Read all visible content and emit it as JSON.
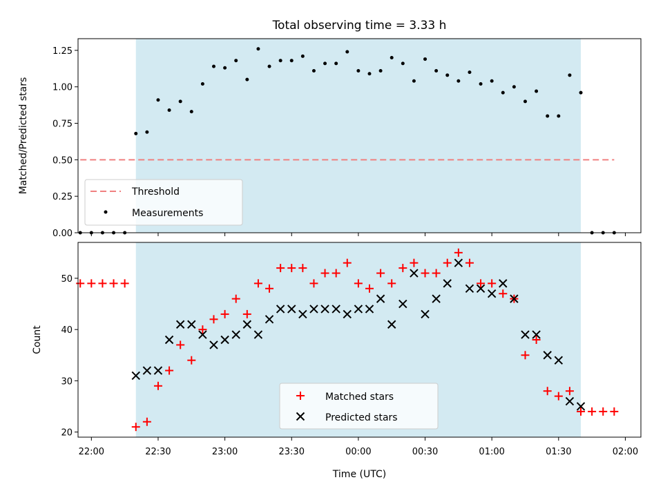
{
  "chart_data": [
    {
      "type": "scatter",
      "title": "Total observing time = 3.33 h",
      "xlabel": "",
      "ylabel": "Matched/Predicted stars",
      "xlim": [
        "21:54",
        "02:07"
      ],
      "ylim": [
        0,
        1.33
      ],
      "yticks": [
        "0.00",
        "0.25",
        "0.50",
        "0.75",
        "1.00",
        "1.25"
      ],
      "shaded_interval": [
        "22:20",
        "01:40"
      ],
      "shaded_color": "#d3eaf2",
      "legend_position": "lower-left",
      "threshold": {
        "name": "Threshold",
        "value": 0.5,
        "x_range": [
          "21:55",
          "01:55"
        ],
        "color": "#f08080"
      },
      "series": [
        {
          "name": "Measurements",
          "color": "#000000",
          "x": [
            "21:55",
            "22:00",
            "22:05",
            "22:10",
            "22:15",
            "22:20",
            "22:25",
            "22:30",
            "22:35",
            "22:40",
            "22:45",
            "22:50",
            "22:55",
            "23:00",
            "23:05",
            "23:10",
            "23:15",
            "23:20",
            "23:25",
            "23:30",
            "23:35",
            "23:40",
            "23:45",
            "23:50",
            "23:55",
            "00:00",
            "00:05",
            "00:10",
            "00:15",
            "00:20",
            "00:25",
            "00:30",
            "00:35",
            "00:40",
            "00:45",
            "00:50",
            "00:55",
            "01:00",
            "01:05",
            "01:10",
            "01:15",
            "01:20",
            "01:25",
            "01:30",
            "01:35",
            "01:40",
            "01:45",
            "01:50",
            "01:55"
          ],
          "y": [
            0,
            0,
            0,
            0,
            0,
            0.68,
            0.69,
            0.91,
            0.84,
            0.9,
            0.83,
            1.02,
            1.14,
            1.13,
            1.18,
            1.05,
            1.26,
            1.14,
            1.18,
            1.18,
            1.21,
            1.11,
            1.16,
            1.16,
            1.24,
            1.11,
            1.09,
            1.11,
            1.2,
            1.16,
            1.04,
            1.19,
            1.11,
            1.08,
            1.04,
            1.1,
            1.02,
            1.04,
            0.96,
            1.0,
            0.9,
            0.97,
            0.8,
            0.8,
            1.08,
            0.96,
            0,
            0,
            0
          ]
        }
      ]
    },
    {
      "type": "scatter",
      "xlabel": "Time (UTC)",
      "ylabel": "Count",
      "xlim": [
        "21:54",
        "02:07"
      ],
      "ylim": [
        19,
        57
      ],
      "xticks": [
        "22:00",
        "22:30",
        "23:00",
        "23:30",
        "00:00",
        "00:30",
        "01:00",
        "01:30",
        "02:00"
      ],
      "yticks": [
        "20",
        "30",
        "40",
        "50"
      ],
      "shaded_interval": [
        "22:20",
        "01:40"
      ],
      "shaded_color": "#d3eaf2",
      "legend_position": "lower-center",
      "series": [
        {
          "name": "Matched stars",
          "marker": "+",
          "color": "#ff0000",
          "x": [
            "21:55",
            "22:00",
            "22:05",
            "22:10",
            "22:15",
            "22:20",
            "22:25",
            "22:30",
            "22:35",
            "22:40",
            "22:45",
            "22:50",
            "22:55",
            "23:00",
            "23:05",
            "23:10",
            "23:15",
            "23:20",
            "23:25",
            "23:30",
            "23:35",
            "23:40",
            "23:45",
            "23:50",
            "23:55",
            "00:00",
            "00:05",
            "00:10",
            "00:15",
            "00:20",
            "00:25",
            "00:30",
            "00:35",
            "00:40",
            "00:45",
            "00:50",
            "00:55",
            "01:00",
            "01:05",
            "01:10",
            "01:15",
            "01:20",
            "01:25",
            "01:30",
            "01:35",
            "01:40",
            "01:45",
            "01:50",
            "01:55"
          ],
          "y": [
            49,
            49,
            49,
            49,
            49,
            21,
            22,
            29,
            32,
            37,
            34,
            40,
            42,
            43,
            46,
            43,
            49,
            48,
            52,
            52,
            52,
            49,
            51,
            51,
            53,
            49,
            48,
            51,
            49,
            52,
            53,
            51,
            51,
            53,
            55,
            53,
            49,
            49,
            47,
            46,
            35,
            38,
            28,
            27,
            28,
            24,
            24,
            24,
            24
          ]
        },
        {
          "name": "Predicted stars",
          "marker": "x",
          "color": "#000000",
          "x": [
            "22:20",
            "22:25",
            "22:30",
            "22:35",
            "22:40",
            "22:45",
            "22:50",
            "22:55",
            "23:00",
            "23:05",
            "23:10",
            "23:15",
            "23:20",
            "23:25",
            "23:30",
            "23:35",
            "23:40",
            "23:45",
            "23:50",
            "23:55",
            "00:00",
            "00:05",
            "00:10",
            "00:15",
            "00:20",
            "00:25",
            "00:30",
            "00:35",
            "00:40",
            "00:45",
            "00:50",
            "00:55",
            "01:00",
            "01:05",
            "01:10",
            "01:15",
            "01:20",
            "01:25",
            "01:30",
            "01:35",
            "01:40"
          ],
          "y": [
            31,
            32,
            32,
            38,
            41,
            41,
            39,
            37,
            38,
            39,
            41,
            39,
            42,
            44,
            44,
            43,
            44,
            44,
            44,
            43,
            44,
            44,
            46,
            41,
            45,
            51,
            43,
            46,
            49,
            53,
            48,
            48,
            47,
            49,
            46,
            39,
            39,
            35,
            34,
            26,
            25
          ]
        }
      ]
    }
  ]
}
